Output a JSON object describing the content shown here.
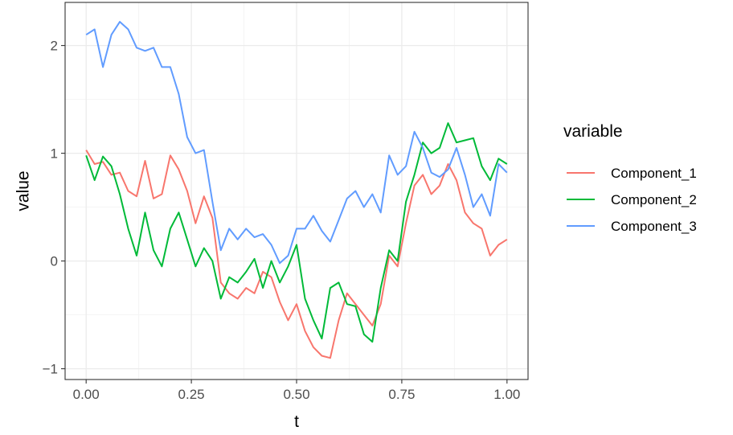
{
  "chart_data": {
    "type": "line",
    "xlabel": "t",
    "ylabel": "value",
    "x_ticks": [
      "0.00",
      "0.25",
      "0.50",
      "0.75",
      "1.00"
    ],
    "y_ticks": [
      "−1",
      "0",
      "1",
      "2"
    ],
    "xlim": [
      -0.05,
      1.05
    ],
    "ylim": [
      -1.1,
      2.4
    ],
    "grid": true,
    "legend": {
      "title": "variable",
      "position": "right"
    },
    "series": [
      {
        "name": "Component_1",
        "color": "#F8766D",
        "x": [
          0,
          0.02,
          0.04,
          0.06,
          0.08,
          0.1,
          0.12,
          0.14,
          0.16,
          0.18,
          0.2,
          0.22,
          0.24,
          0.26,
          0.28,
          0.3,
          0.32,
          0.34,
          0.36,
          0.38,
          0.4,
          0.42,
          0.44,
          0.46,
          0.48,
          0.5,
          0.52,
          0.54,
          0.56,
          0.58,
          0.6,
          0.62,
          0.64,
          0.66,
          0.68,
          0.7,
          0.72,
          0.74,
          0.76,
          0.78,
          0.8,
          0.82,
          0.84,
          0.86,
          0.88,
          0.9,
          0.92,
          0.94,
          0.96,
          0.98,
          1.0
        ],
        "values": [
          1.03,
          0.9,
          0.92,
          0.8,
          0.82,
          0.65,
          0.6,
          0.93,
          0.58,
          0.62,
          0.98,
          0.85,
          0.65,
          0.35,
          0.6,
          0.4,
          -0.2,
          -0.3,
          -0.35,
          -0.25,
          -0.3,
          -0.1,
          -0.15,
          -0.38,
          -0.55,
          -0.4,
          -0.65,
          -0.8,
          -0.88,
          -0.9,
          -0.55,
          -0.3,
          -0.4,
          -0.5,
          -0.6,
          -0.4,
          0.05,
          -0.05,
          0.35,
          0.7,
          0.8,
          0.62,
          0.7,
          0.9,
          0.75,
          0.45,
          0.35,
          0.3,
          0.05,
          0.15,
          0.2
        ]
      },
      {
        "name": "Component_2",
        "color": "#00BA38",
        "x": [
          0,
          0.02,
          0.04,
          0.06,
          0.08,
          0.1,
          0.12,
          0.14,
          0.16,
          0.18,
          0.2,
          0.22,
          0.24,
          0.26,
          0.28,
          0.3,
          0.32,
          0.34,
          0.36,
          0.38,
          0.4,
          0.42,
          0.44,
          0.46,
          0.48,
          0.5,
          0.52,
          0.54,
          0.56,
          0.58,
          0.6,
          0.62,
          0.64,
          0.66,
          0.68,
          0.7,
          0.72,
          0.74,
          0.76,
          0.78,
          0.8,
          0.82,
          0.84,
          0.86,
          0.88,
          0.9,
          0.92,
          0.94,
          0.96,
          0.98,
          1.0
        ],
        "values": [
          0.98,
          0.75,
          0.97,
          0.88,
          0.62,
          0.3,
          0.05,
          0.45,
          0.1,
          -0.05,
          0.3,
          0.45,
          0.2,
          -0.05,
          0.12,
          0.0,
          -0.35,
          -0.15,
          -0.2,
          -0.1,
          0.02,
          -0.25,
          0.0,
          -0.2,
          -0.05,
          0.15,
          -0.35,
          -0.55,
          -0.72,
          -0.25,
          -0.2,
          -0.4,
          -0.42,
          -0.68,
          -0.75,
          -0.25,
          0.1,
          0.0,
          0.55,
          0.8,
          1.1,
          1.0,
          1.05,
          1.28,
          1.1,
          1.12,
          1.14,
          0.88,
          0.75,
          0.95,
          0.9
        ]
      },
      {
        "name": "Component_3",
        "color": "#619CFF",
        "x": [
          0,
          0.02,
          0.04,
          0.06,
          0.08,
          0.1,
          0.12,
          0.14,
          0.16,
          0.18,
          0.2,
          0.22,
          0.24,
          0.26,
          0.28,
          0.3,
          0.32,
          0.34,
          0.36,
          0.38,
          0.4,
          0.42,
          0.44,
          0.46,
          0.48,
          0.5,
          0.52,
          0.54,
          0.56,
          0.58,
          0.6,
          0.62,
          0.64,
          0.66,
          0.68,
          0.7,
          0.72,
          0.74,
          0.76,
          0.78,
          0.8,
          0.82,
          0.84,
          0.86,
          0.88,
          0.9,
          0.92,
          0.94,
          0.96,
          0.98,
          1.0
        ],
        "values": [
          2.1,
          2.15,
          1.8,
          2.1,
          2.22,
          2.15,
          1.98,
          1.95,
          1.98,
          1.8,
          1.8,
          1.55,
          1.15,
          1.0,
          1.03,
          0.55,
          0.1,
          0.3,
          0.2,
          0.3,
          0.22,
          0.25,
          0.15,
          -0.02,
          0.05,
          0.3,
          0.3,
          0.42,
          0.28,
          0.18,
          0.38,
          0.58,
          0.65,
          0.5,
          0.62,
          0.45,
          0.98,
          0.8,
          0.88,
          1.2,
          1.05,
          0.82,
          0.78,
          0.85,
          1.05,
          0.8,
          0.5,
          0.62,
          0.42,
          0.9,
          0.82
        ]
      }
    ]
  }
}
